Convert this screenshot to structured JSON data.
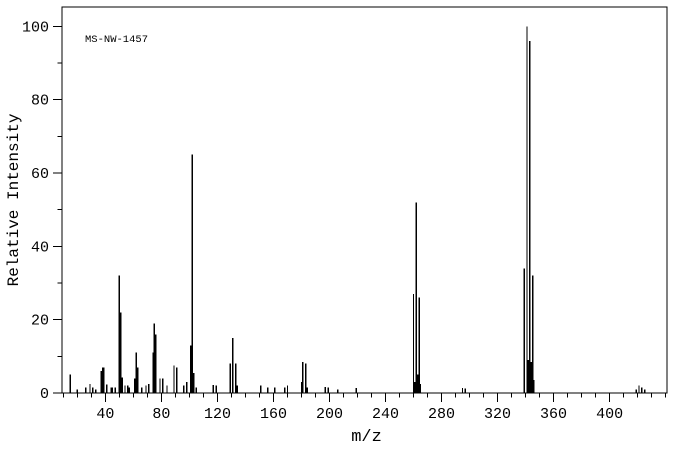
{
  "chart_data": {
    "type": "bar",
    "title": "MS-NW-1457",
    "annotation": "MS-NW-1457",
    "xlabel": "m/z",
    "ylabel": "Relative Intensity",
    "xlim": [
      9,
      441
    ],
    "ylim": [
      0,
      105.3
    ],
    "x_labeled_ticks": [
      40,
      80,
      120,
      160,
      200,
      240,
      280,
      320,
      360,
      400
    ],
    "x_minor_start": 10,
    "x_minor_end": 440,
    "x_minor_step": 10,
    "y_labeled_ticks": [
      0,
      20,
      40,
      60,
      80,
      100
    ],
    "y_minor_step": 10,
    "grid": "off",
    "legend": "none",
    "line_color": "#000000",
    "background_color": "#ffffff",
    "peaks": [
      [
        15,
        5
      ],
      [
        20,
        1
      ],
      [
        26,
        1.5
      ],
      [
        29,
        2.5
      ],
      [
        31,
        1.5
      ],
      [
        33,
        1
      ],
      [
        37,
        6
      ],
      [
        38,
        7
      ],
      [
        39,
        7
      ],
      [
        41,
        2.3
      ],
      [
        44,
        1.5
      ],
      [
        45,
        1.5
      ],
      [
        47,
        1.5
      ],
      [
        50,
        32
      ],
      [
        51,
        22
      ],
      [
        52,
        4.2
      ],
      [
        54,
        2
      ],
      [
        56,
        2
      ],
      [
        57,
        1.5
      ],
      [
        61,
        4
      ],
      [
        62,
        11
      ],
      [
        63,
        7
      ],
      [
        66,
        1.5
      ],
      [
        69,
        2
      ],
      [
        71,
        2.5
      ],
      [
        74,
        11
      ],
      [
        75,
        19
      ],
      [
        76,
        16
      ],
      [
        79,
        4
      ],
      [
        81,
        4
      ],
      [
        84,
        2
      ],
      [
        89,
        7.5
      ],
      [
        91,
        7
      ],
      [
        96,
        2
      ],
      [
        98,
        3
      ],
      [
        101,
        13
      ],
      [
        102,
        65
      ],
      [
        103,
        5.5
      ],
      [
        105,
        1.5
      ],
      [
        117,
        2.2
      ],
      [
        119,
        2
      ],
      [
        129,
        8
      ],
      [
        131,
        15
      ],
      [
        133,
        8
      ],
      [
        134,
        2
      ],
      [
        151,
        2
      ],
      [
        156,
        1.5
      ],
      [
        161,
        1.5
      ],
      [
        168,
        1.5
      ],
      [
        170,
        2
      ],
      [
        180,
        3
      ],
      [
        181,
        8.5
      ],
      [
        183,
        8
      ],
      [
        184,
        1.5
      ],
      [
        197,
        1.7
      ],
      [
        199,
        1.5
      ],
      [
        206,
        1
      ],
      [
        219,
        1.3
      ],
      [
        260,
        27
      ],
      [
        261,
        3
      ],
      [
        262,
        52
      ],
      [
        263,
        5
      ],
      [
        264,
        26
      ],
      [
        265,
        2.5
      ],
      [
        295,
        1.4
      ],
      [
        297,
        1.2
      ],
      [
        339,
        34
      ],
      [
        341,
        100
      ],
      [
        342,
        9
      ],
      [
        343,
        96
      ],
      [
        344,
        8.5
      ],
      [
        345,
        32
      ],
      [
        346,
        3.5
      ],
      [
        419,
        1
      ],
      [
        421,
        2
      ],
      [
        423,
        1.5
      ],
      [
        425,
        1
      ]
    ]
  }
}
